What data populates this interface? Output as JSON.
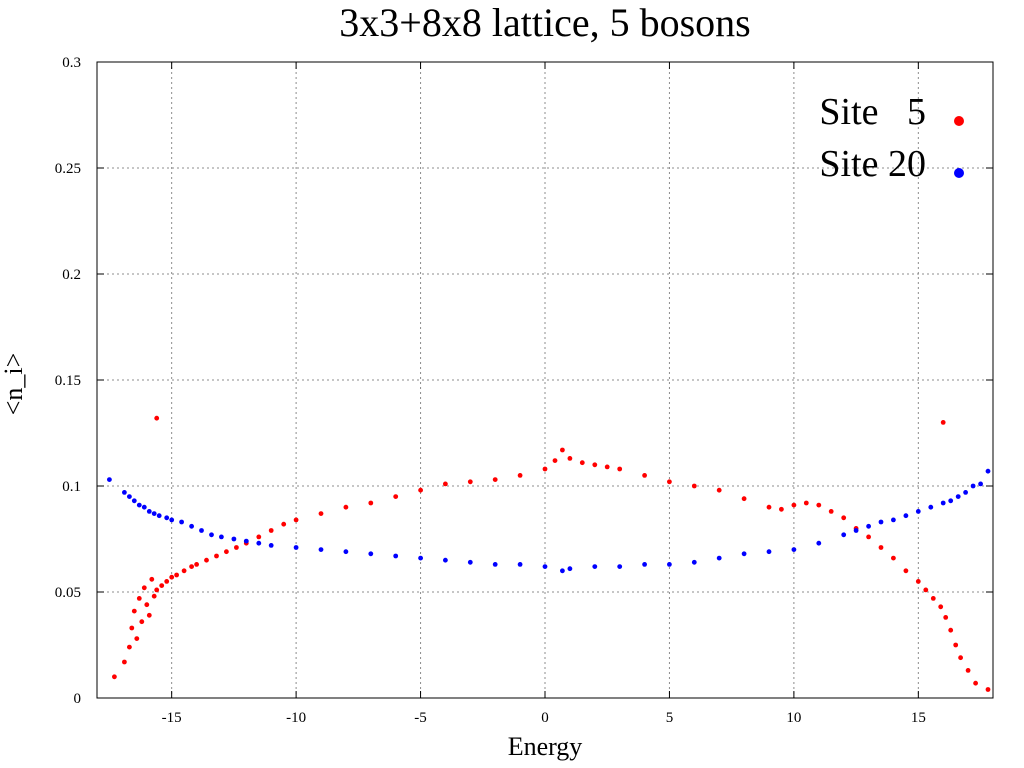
{
  "chart_data": {
    "type": "scatter",
    "title": "3x3+8x8 lattice, 5 bosons",
    "xlabel": "Energy",
    "ylabel": "<n_i>",
    "xlim": [
      -18,
      18
    ],
    "ylim": [
      0,
      0.3
    ],
    "xticks": [
      -15,
      -10,
      -5,
      0,
      5,
      10,
      15
    ],
    "xtick_labels": [
      "-15",
      "-10",
      "-5",
      "0",
      "5",
      "10",
      "15"
    ],
    "yticks": [
      0,
      0.05,
      0.1,
      0.15,
      0.2,
      0.25,
      0.3
    ],
    "ytick_labels": [
      "0",
      "0.05",
      "0.1",
      "0.15",
      "0.2",
      "0.25",
      "0.3"
    ],
    "grid": true,
    "legend_position": "top-right",
    "series": [
      {
        "name": "Site   5",
        "color": "#ff0000",
        "points": [
          [
            -17.3,
            0.01
          ],
          [
            -16.9,
            0.017
          ],
          [
            -16.7,
            0.024
          ],
          [
            -16.6,
            0.033
          ],
          [
            -16.5,
            0.041
          ],
          [
            -16.4,
            0.028
          ],
          [
            -16.3,
            0.047
          ],
          [
            -16.2,
            0.036
          ],
          [
            -16.1,
            0.052
          ],
          [
            -16.0,
            0.044
          ],
          [
            -15.9,
            0.039
          ],
          [
            -15.8,
            0.056
          ],
          [
            -15.7,
            0.048
          ],
          [
            -15.6,
            0.051
          ],
          [
            -15.6,
            0.132
          ],
          [
            -15.4,
            0.053
          ],
          [
            -15.2,
            0.055
          ],
          [
            -15.0,
            0.057
          ],
          [
            -14.8,
            0.058
          ],
          [
            -14.5,
            0.06
          ],
          [
            -14.2,
            0.062
          ],
          [
            -14.0,
            0.063
          ],
          [
            -13.6,
            0.065
          ],
          [
            -13.2,
            0.067
          ],
          [
            -12.8,
            0.069
          ],
          [
            -12.4,
            0.071
          ],
          [
            -12.0,
            0.073
          ],
          [
            -11.5,
            0.076
          ],
          [
            -11.0,
            0.079
          ],
          [
            -10.5,
            0.082
          ],
          [
            -10.0,
            0.084
          ],
          [
            -9.0,
            0.087
          ],
          [
            -8.0,
            0.09
          ],
          [
            -7.0,
            0.092
          ],
          [
            -6.0,
            0.095
          ],
          [
            -5.0,
            0.098
          ],
          [
            -4.0,
            0.101
          ],
          [
            -3.0,
            0.102
          ],
          [
            -2.0,
            0.103
          ],
          [
            -1.0,
            0.105
          ],
          [
            0.0,
            0.108
          ],
          [
            0.4,
            0.112
          ],
          [
            0.7,
            0.117
          ],
          [
            1.0,
            0.113
          ],
          [
            1.5,
            0.111
          ],
          [
            2.0,
            0.11
          ],
          [
            2.5,
            0.109
          ],
          [
            3.0,
            0.108
          ],
          [
            4.0,
            0.105
          ],
          [
            5.0,
            0.102
          ],
          [
            6.0,
            0.1
          ],
          [
            7.0,
            0.098
          ],
          [
            8.0,
            0.094
          ],
          [
            9.0,
            0.09
          ],
          [
            9.5,
            0.089
          ],
          [
            10.0,
            0.091
          ],
          [
            10.5,
            0.092
          ],
          [
            11.0,
            0.091
          ],
          [
            11.5,
            0.088
          ],
          [
            12.0,
            0.085
          ],
          [
            12.5,
            0.08
          ],
          [
            13.0,
            0.076
          ],
          [
            13.5,
            0.071
          ],
          [
            14.0,
            0.066
          ],
          [
            14.5,
            0.06
          ],
          [
            15.0,
            0.055
          ],
          [
            15.3,
            0.051
          ],
          [
            15.6,
            0.047
          ],
          [
            15.9,
            0.043
          ],
          [
            16.0,
            0.13
          ],
          [
            16.1,
            0.038
          ],
          [
            16.3,
            0.032
          ],
          [
            16.5,
            0.025
          ],
          [
            16.7,
            0.019
          ],
          [
            17.0,
            0.013
          ],
          [
            17.3,
            0.007
          ],
          [
            17.8,
            0.004
          ]
        ]
      },
      {
        "name": "Site 20",
        "color": "#0000ff",
        "points": [
          [
            -17.5,
            0.103
          ],
          [
            -16.9,
            0.097
          ],
          [
            -16.7,
            0.095
          ],
          [
            -16.5,
            0.093
          ],
          [
            -16.3,
            0.091
          ],
          [
            -16.1,
            0.09
          ],
          [
            -15.9,
            0.088
          ],
          [
            -15.7,
            0.087
          ],
          [
            -15.5,
            0.086
          ],
          [
            -15.2,
            0.085
          ],
          [
            -15.0,
            0.084
          ],
          [
            -14.6,
            0.083
          ],
          [
            -14.2,
            0.081
          ],
          [
            -13.8,
            0.079
          ],
          [
            -13.4,
            0.077
          ],
          [
            -13.0,
            0.076
          ],
          [
            -12.5,
            0.075
          ],
          [
            -12.0,
            0.074
          ],
          [
            -11.5,
            0.073
          ],
          [
            -11.0,
            0.072
          ],
          [
            -10.0,
            0.071
          ],
          [
            -9.0,
            0.07
          ],
          [
            -8.0,
            0.069
          ],
          [
            -7.0,
            0.068
          ],
          [
            -6.0,
            0.067
          ],
          [
            -5.0,
            0.066
          ],
          [
            -4.0,
            0.065
          ],
          [
            -3.0,
            0.064
          ],
          [
            -2.0,
            0.063
          ],
          [
            -1.0,
            0.063
          ],
          [
            0.0,
            0.062
          ],
          [
            0.7,
            0.06
          ],
          [
            1.0,
            0.061
          ],
          [
            2.0,
            0.062
          ],
          [
            3.0,
            0.062
          ],
          [
            4.0,
            0.063
          ],
          [
            5.0,
            0.063
          ],
          [
            6.0,
            0.064
          ],
          [
            7.0,
            0.066
          ],
          [
            8.0,
            0.068
          ],
          [
            9.0,
            0.069
          ],
          [
            10.0,
            0.07
          ],
          [
            11.0,
            0.073
          ],
          [
            12.0,
            0.077
          ],
          [
            12.5,
            0.079
          ],
          [
            13.0,
            0.081
          ],
          [
            13.5,
            0.083
          ],
          [
            14.0,
            0.084
          ],
          [
            14.5,
            0.086
          ],
          [
            15.0,
            0.088
          ],
          [
            15.5,
            0.09
          ],
          [
            16.0,
            0.092
          ],
          [
            16.3,
            0.093
          ],
          [
            16.6,
            0.095
          ],
          [
            16.9,
            0.097
          ],
          [
            17.2,
            0.1
          ],
          [
            17.5,
            0.101
          ],
          [
            17.8,
            0.107
          ]
        ]
      }
    ]
  }
}
